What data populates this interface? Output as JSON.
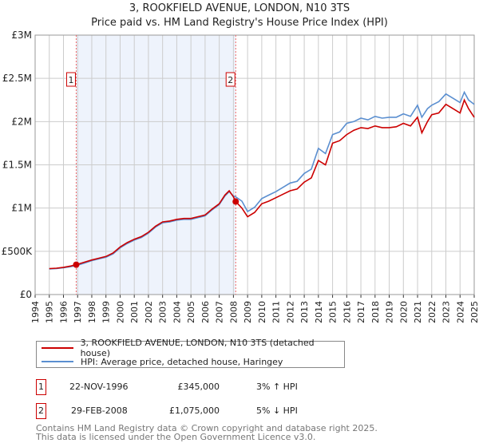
{
  "header": {
    "title": "3, ROOKFIELD AVENUE, LONDON, N10 3TS",
    "subtitle": "Price paid vs. HM Land Registry's House Price Index (HPI)"
  },
  "chart_data": {
    "type": "line",
    "title": "3, ROOKFIELD AVENUE, LONDON, N10 3TS",
    "xlim": [
      1994,
      2025
    ],
    "ylim": [
      0,
      3000000
    ],
    "x_ticks": [
      "1994",
      "1995",
      "1996",
      "1997",
      "1998",
      "1999",
      "2000",
      "2001",
      "2002",
      "2003",
      "2004",
      "2005",
      "2006",
      "2007",
      "2008",
      "2009",
      "2010",
      "2011",
      "2012",
      "2013",
      "2014",
      "2015",
      "2016",
      "2017",
      "2018",
      "2019",
      "2020",
      "2021",
      "2022",
      "2023",
      "2024",
      "2025"
    ],
    "y_ticks": [
      {
        "v": 0,
        "label": "£0"
      },
      {
        "v": 500000,
        "label": "£500K"
      },
      {
        "v": 1000000,
        "label": "£1M"
      },
      {
        "v": 1500000,
        "label": "£1.5M"
      },
      {
        "v": 2000000,
        "label": "£2M"
      },
      {
        "v": 2500000,
        "label": "£2.5M"
      },
      {
        "v": 3000000,
        "label": "£3M"
      }
    ],
    "grid": true,
    "shaded_range": [
      1996.9,
      2008.16
    ],
    "series": [
      {
        "name": "3, ROOKFIELD AVENUE, LONDON, N10 3TS (detached house)",
        "color": "#cc0000",
        "x": [
          1995,
          1995.5,
          1996,
          1996.5,
          1996.9,
          1997.5,
          1998,
          1998.5,
          1999,
          1999.5,
          2000,
          2000.5,
          2001,
          2001.5,
          2002,
          2002.5,
          2003,
          2003.5,
          2004,
          2004.5,
          2005,
          2005.5,
          2006,
          2006.5,
          2007,
          2007.4,
          2007.7,
          2008,
          2008.16,
          2008.6,
          2009,
          2009.5,
          2010,
          2010.5,
          2011,
          2011.5,
          2012,
          2012.5,
          2013,
          2013.5,
          2014,
          2014.5,
          2015,
          2015.5,
          2016,
          2016.5,
          2017,
          2017.5,
          2018,
          2018.5,
          2019,
          2019.5,
          2020,
          2020.5,
          2021,
          2021.3,
          2021.7,
          2022,
          2022.5,
          2023,
          2023.5,
          2024,
          2024.3,
          2024.6,
          2025
        ],
        "y": [
          300000,
          305000,
          315000,
          330000,
          345000,
          375000,
          400000,
          420000,
          440000,
          480000,
          550000,
          600000,
          640000,
          670000,
          720000,
          790000,
          840000,
          850000,
          870000,
          880000,
          880000,
          900000,
          920000,
          990000,
          1050000,
          1150000,
          1200000,
          1130000,
          1075000,
          1000000,
          900000,
          950000,
          1050000,
          1080000,
          1120000,
          1160000,
          1200000,
          1220000,
          1300000,
          1350000,
          1550000,
          1500000,
          1750000,
          1780000,
          1850000,
          1900000,
          1930000,
          1920000,
          1950000,
          1930000,
          1930000,
          1940000,
          1980000,
          1950000,
          2050000,
          1870000,
          2000000,
          2080000,
          2100000,
          2200000,
          2150000,
          2100000,
          2250000,
          2150000,
          2050000
        ]
      },
      {
        "name": "HPI: Average price, detached house, Haringey",
        "color": "#5b8fd0",
        "x": [
          1995,
          1995.5,
          1996,
          1996.5,
          1996.9,
          1997.5,
          1998,
          1998.5,
          1999,
          1999.5,
          2000,
          2000.5,
          2001,
          2001.5,
          2002,
          2002.5,
          2003,
          2003.5,
          2004,
          2004.5,
          2005,
          2005.5,
          2006,
          2006.5,
          2007,
          2007.4,
          2007.7,
          2008,
          2008.16,
          2008.6,
          2009,
          2009.5,
          2010,
          2010.5,
          2011,
          2011.5,
          2012,
          2012.5,
          2013,
          2013.5,
          2014,
          2014.5,
          2015,
          2015.5,
          2016,
          2016.5,
          2017,
          2017.5,
          2018,
          2018.5,
          2019,
          2019.5,
          2020,
          2020.5,
          2021,
          2021.3,
          2021.7,
          2022,
          2022.5,
          2023,
          2023.5,
          2024,
          2024.3,
          2024.6,
          2025
        ],
        "y": [
          295000,
          300000,
          310000,
          322000,
          335000,
          365000,
          392000,
          412000,
          432000,
          470000,
          540000,
          590000,
          630000,
          660000,
          710000,
          780000,
          830000,
          840000,
          860000,
          870000,
          870000,
          890000,
          910000,
          980000,
          1040000,
          1140000,
          1190000,
          1140000,
          1130000,
          1080000,
          960000,
          1010000,
          1110000,
          1150000,
          1190000,
          1240000,
          1290000,
          1310000,
          1400000,
          1450000,
          1690000,
          1630000,
          1850000,
          1880000,
          1980000,
          2000000,
          2040000,
          2020000,
          2060000,
          2040000,
          2050000,
          2050000,
          2090000,
          2060000,
          2190000,
          2050000,
          2150000,
          2190000,
          2230000,
          2320000,
          2270000,
          2220000,
          2340000,
          2250000,
          2200000
        ]
      }
    ],
    "markers": [
      {
        "label": "1",
        "x": 1996.9,
        "y": 345000
      },
      {
        "label": "2",
        "x": 2008.16,
        "y": 1075000
      }
    ]
  },
  "legend": {
    "items": [
      {
        "label": "3, ROOKFIELD AVENUE, LONDON, N10 3TS (detached house)",
        "color": "#cc0000"
      },
      {
        "label": "HPI: Average price, detached house, Haringey",
        "color": "#5b8fd0"
      }
    ]
  },
  "transactions": [
    {
      "num": "1",
      "date": "22-NOV-1996",
      "price": "£345,000",
      "hpi": "3% ↑ HPI"
    },
    {
      "num": "2",
      "date": "29-FEB-2008",
      "price": "£1,075,000",
      "hpi": "5% ↓ HPI"
    }
  ],
  "footer": {
    "line1": "Contains HM Land Registry data © Crown copyright and database right 2025.",
    "line2": "This data is licensed under the Open Government Licence v3.0."
  }
}
